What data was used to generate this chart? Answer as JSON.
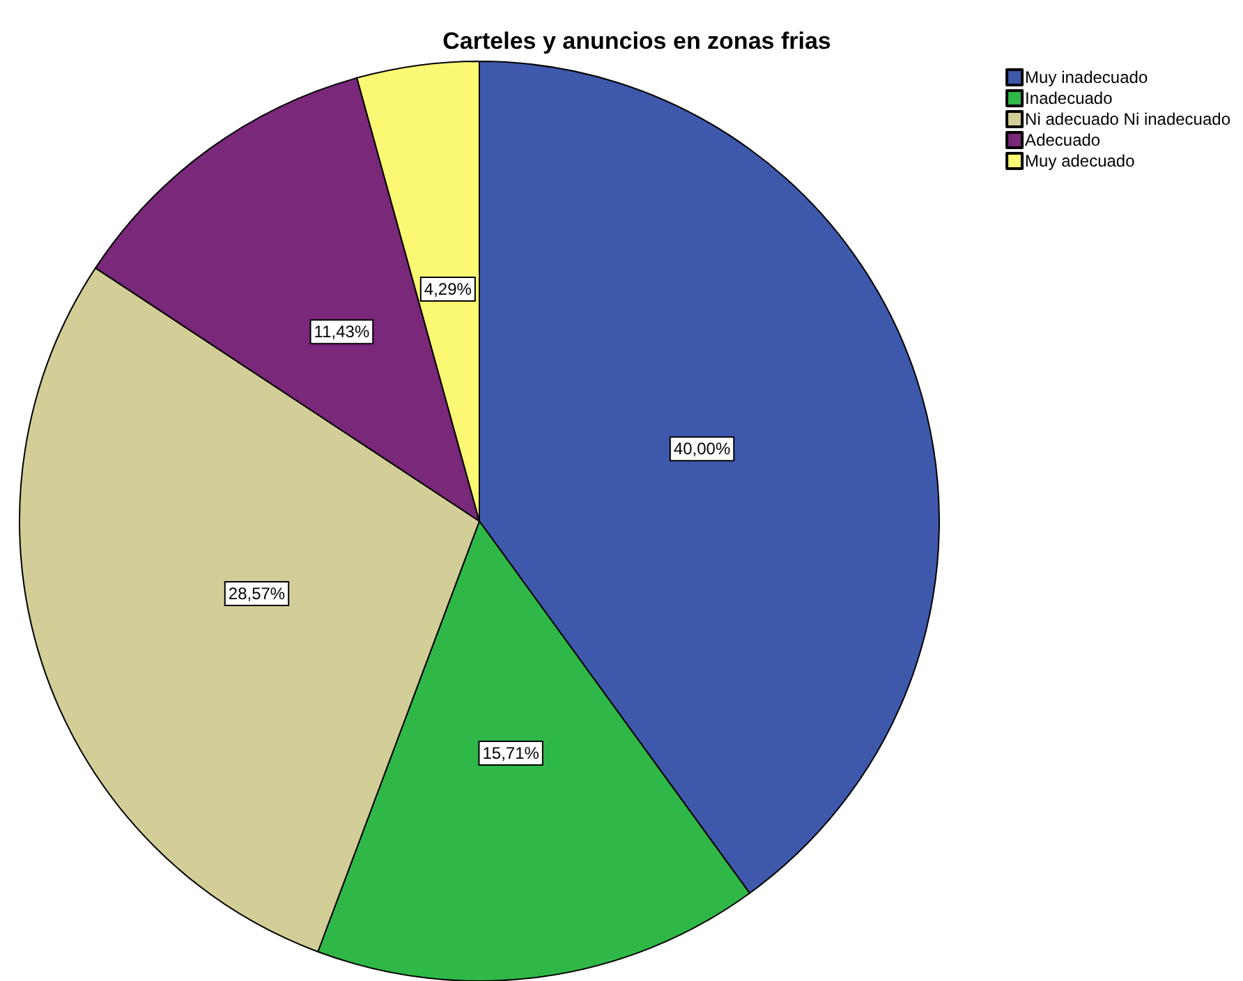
{
  "chart_data": {
    "type": "pie",
    "title": "Carteles y anuncios en zonas frias",
    "categories": [
      "Muy inadecuado",
      "Inadecuado",
      "Ni adecuado Ni inadecuado",
      "Adecuado",
      "Muy adecuado"
    ],
    "values": [
      40.0,
      15.71,
      28.57,
      11.43,
      4.29
    ],
    "value_labels": [
      "40,00%",
      "15,71%",
      "28,57%",
      "11,43%",
      "4,29%"
    ],
    "colors": [
      "#3e58ac",
      "#2fb847",
      "#d3ce97",
      "#79287a",
      "#fbf873"
    ],
    "legend": "top right"
  }
}
